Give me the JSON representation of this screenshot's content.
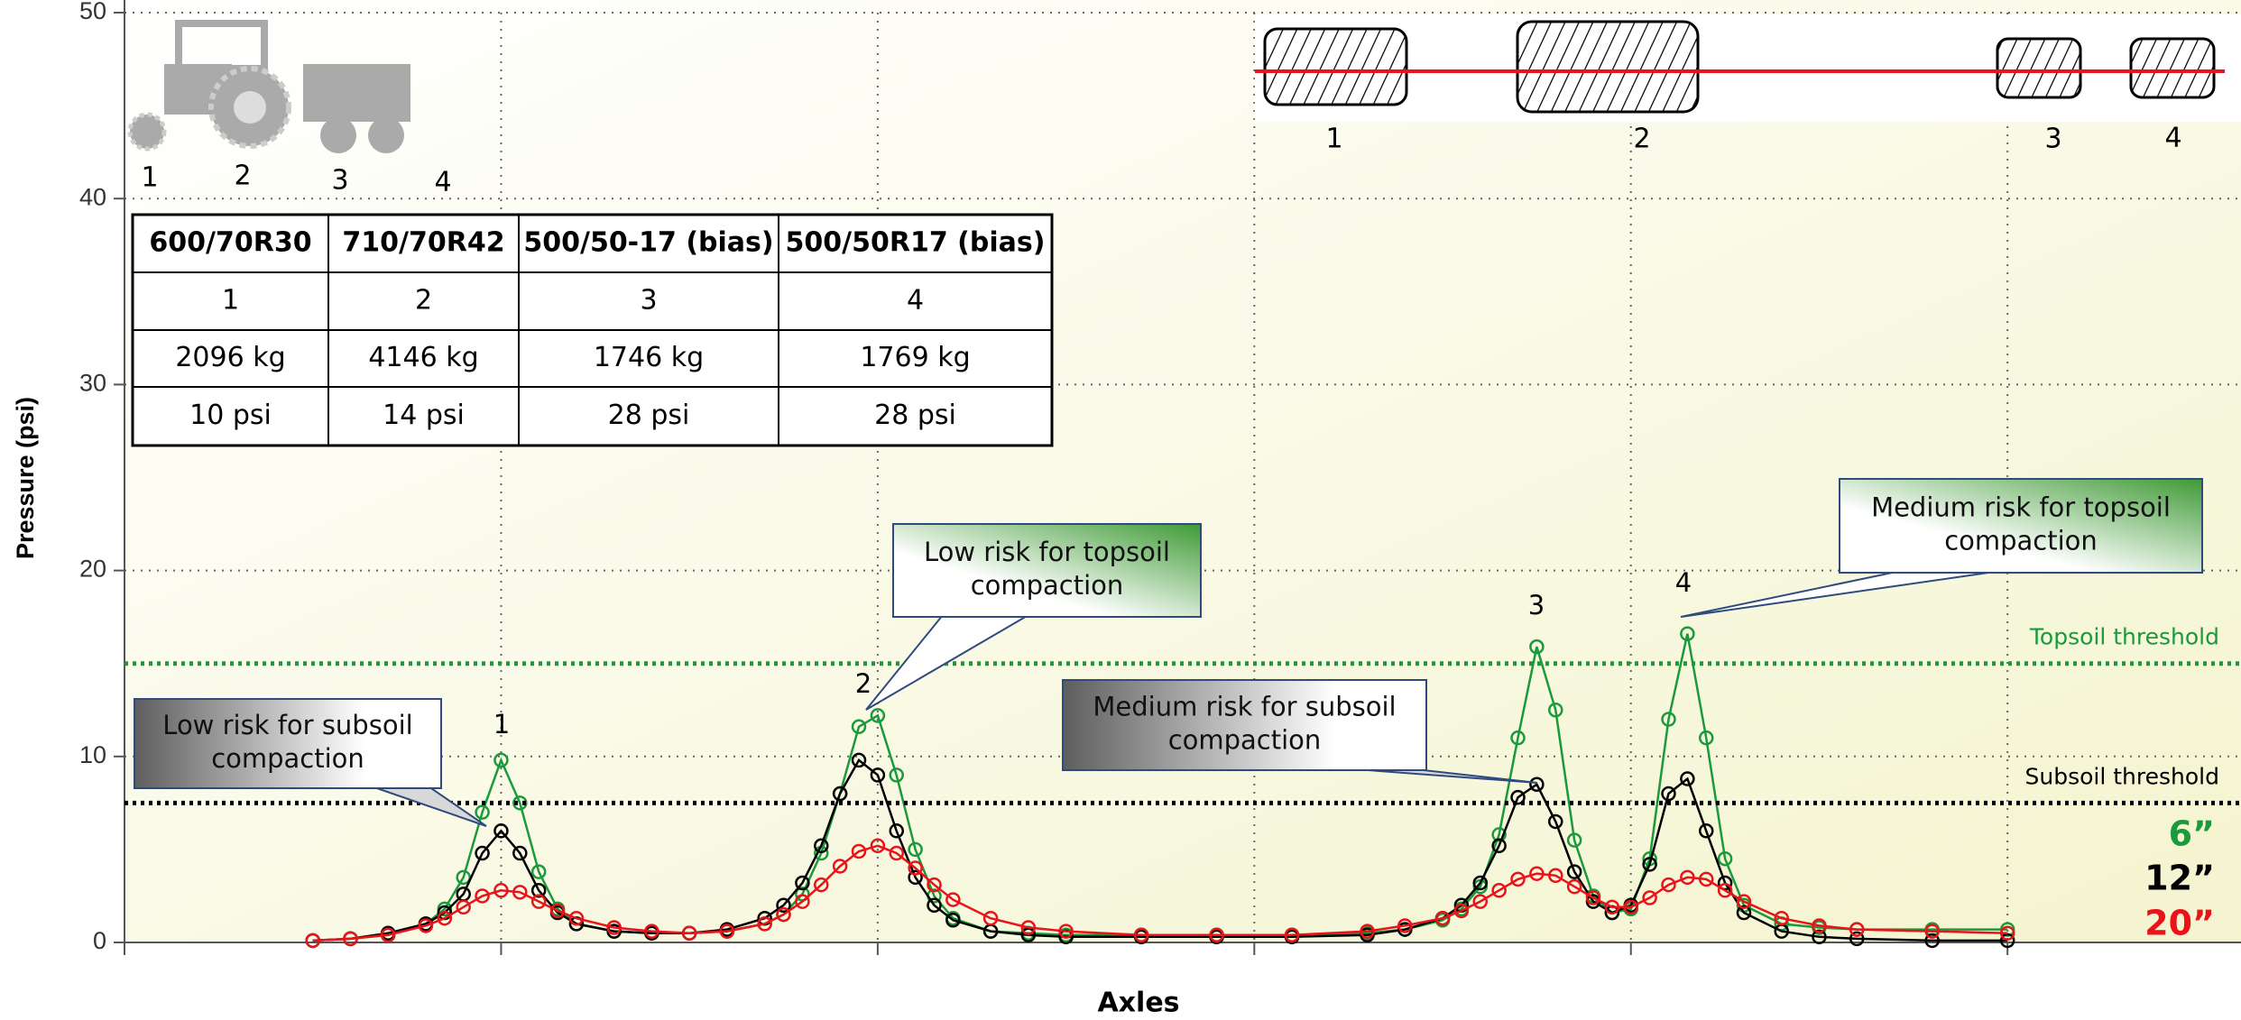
{
  "chart_data": {
    "type": "line",
    "y_label": "Pressure (psi)",
    "x_label": "Axles",
    "xlim": [
      0,
      5.62
    ],
    "xticks": [
      0,
      1,
      2,
      3,
      4,
      5
    ],
    "ylim": [
      0,
      50
    ],
    "yticks": [
      0,
      10,
      20,
      30,
      40,
      50
    ],
    "grid": true,
    "x": [
      0.5,
      0.6,
      0.7,
      0.8,
      0.85,
      0.9,
      0.95,
      1.0,
      1.05,
      1.1,
      1.15,
      1.2,
      1.3,
      1.4,
      1.5,
      1.6,
      1.7,
      1.75,
      1.8,
      1.85,
      1.9,
      1.95,
      2.0,
      2.05,
      2.1,
      2.15,
      2.2,
      2.3,
      2.4,
      2.5,
      2.7,
      2.9,
      3.1,
      3.3,
      3.4,
      3.5,
      3.55,
      3.6,
      3.65,
      3.7,
      3.75,
      3.8,
      3.85,
      3.9,
      3.95,
      4.0,
      4.05,
      4.1,
      4.15,
      4.2,
      4.25,
      4.3,
      4.4,
      4.5,
      4.6,
      4.8,
      5.0
    ],
    "series": [
      {
        "name": "6”",
        "color": "#1a9a3a",
        "values": [
          0.1,
          0.2,
          0.4,
          1.0,
          1.8,
          3.5,
          7.0,
          9.8,
          7.5,
          3.8,
          1.8,
          1.0,
          0.6,
          0.5,
          0.5,
          0.6,
          1.0,
          1.5,
          2.6,
          4.8,
          8.0,
          11.6,
          12.2,
          9.0,
          5.0,
          2.5,
          1.3,
          0.6,
          0.5,
          0.4,
          0.4,
          0.4,
          0.4,
          0.5,
          0.7,
          1.2,
          1.8,
          3.0,
          5.8,
          11.0,
          15.9,
          12.5,
          5.5,
          2.5,
          1.6,
          1.8,
          4.5,
          12.0,
          16.6,
          11.0,
          4.5,
          2.0,
          1.0,
          0.8,
          0.7,
          0.7,
          0.7
        ]
      },
      {
        "name": "12”",
        "color": "#000000",
        "values": [
          0.1,
          0.2,
          0.5,
          1.0,
          1.6,
          2.6,
          4.8,
          6.0,
          4.8,
          2.8,
          1.6,
          1.0,
          0.6,
          0.5,
          0.5,
          0.7,
          1.3,
          2.0,
          3.2,
          5.2,
          8.0,
          9.8,
          9.0,
          6.0,
          3.5,
          2.0,
          1.2,
          0.6,
          0.4,
          0.3,
          0.3,
          0.3,
          0.3,
          0.4,
          0.7,
          1.3,
          2.0,
          3.2,
          5.2,
          7.8,
          8.5,
          6.5,
          3.8,
          2.2,
          1.6,
          2.0,
          4.2,
          8.0,
          8.8,
          6.0,
          3.2,
          1.6,
          0.6,
          0.3,
          0.2,
          0.1,
          0.1
        ]
      },
      {
        "name": "20”",
        "color": "#e8141a",
        "values": [
          0.1,
          0.2,
          0.4,
          0.9,
          1.3,
          1.9,
          2.5,
          2.8,
          2.7,
          2.2,
          1.7,
          1.3,
          0.8,
          0.6,
          0.5,
          0.6,
          1.0,
          1.5,
          2.2,
          3.1,
          4.1,
          4.9,
          5.2,
          4.8,
          4.0,
          3.1,
          2.3,
          1.3,
          0.8,
          0.6,
          0.4,
          0.4,
          0.4,
          0.6,
          0.9,
          1.3,
          1.7,
          2.2,
          2.8,
          3.4,
          3.7,
          3.6,
          3.0,
          2.4,
          1.9,
          1.9,
          2.4,
          3.1,
          3.5,
          3.4,
          2.8,
          2.2,
          1.3,
          0.9,
          0.7,
          0.6,
          0.5
        ]
      }
    ],
    "thresholds": [
      {
        "label": "Topsoil threshold",
        "value": 15,
        "color": "#1a9a3a"
      },
      {
        "label": "Subsoil threshold",
        "value": 7.5,
        "color": "#000000"
      }
    ],
    "peak_labels": [
      "1",
      "2",
      "3",
      "4"
    ],
    "callouts": [
      {
        "lines": [
          "Low risk for subsoil",
          "compaction"
        ],
        "style": "gray"
      },
      {
        "lines": [
          "Low risk for topsoil",
          "compaction"
        ],
        "style": "green"
      },
      {
        "lines": [
          "Medium risk for subsoil",
          "compaction"
        ],
        "style": "gray"
      },
      {
        "lines": [
          "Medium risk for topsoil",
          "compaction"
        ],
        "style": "green"
      }
    ]
  },
  "tire_table": {
    "headers": [
      "600/70R30",
      "710/70R42",
      "500/50-17 (bias)",
      "500/50R17 (bias)"
    ],
    "rows": [
      [
        "1",
        "2",
        "3",
        "4"
      ],
      [
        "2096 kg",
        "4146 kg",
        "1746 kg",
        "1769 kg"
      ],
      [
        "10 psi",
        "14 psi",
        "28 psi",
        "28 psi"
      ]
    ]
  },
  "tractor_labels": [
    "1",
    "2",
    "3",
    "4"
  ],
  "tire_labels": [
    "1",
    "2",
    "3",
    "4"
  ]
}
